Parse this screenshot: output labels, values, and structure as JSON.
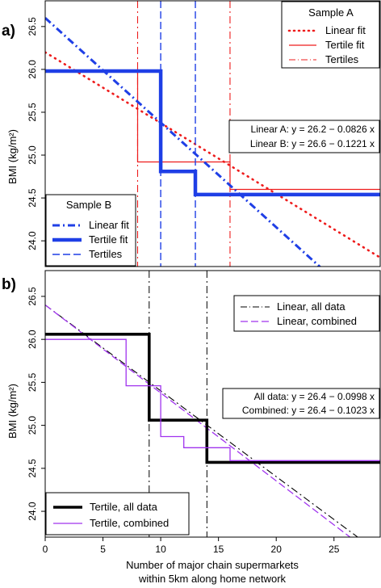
{
  "chart_data": [
    {
      "type": "line",
      "panel_label": "a)",
      "ylabel": "BMI (kg/m²)",
      "xlim": [
        0,
        29
      ],
      "ylim": [
        23.7,
        26.8
      ],
      "yticks": [
        24.0,
        24.5,
        25.0,
        25.5,
        26.0,
        26.5
      ],
      "ytick_labels": [
        "24.0",
        "24.5",
        "25.0",
        "25.5",
        "26.0",
        "26.5"
      ],
      "grid": false,
      "legends": [
        {
          "title": "Sample A",
          "placement": "top-right",
          "items": [
            {
              "label": "Linear fit",
              "series": "a_lin"
            },
            {
              "label": "Tertile fit",
              "series": "a_ter"
            },
            {
              "label": "Tertiles",
              "series": "a_cut"
            }
          ]
        },
        {
          "title": "Sample B",
          "placement": "bottom-left",
          "items": [
            {
              "label": "Linear fit",
              "series": "b_lin"
            },
            {
              "label": "Tertile fit",
              "series": "b_ter"
            },
            {
              "label": "Tertiles",
              "series": "b_cut"
            }
          ]
        }
      ],
      "annotations": [
        "Linear A: y = 26.2 − 0.0826 x",
        "Linear B: y = 26.6 − 0.1221 x"
      ],
      "series": [
        {
          "id": "a_lin",
          "kind": "line",
          "color": "#ee1c1c",
          "style": "dotted",
          "width": 2.6,
          "x": [
            0,
            29
          ],
          "y": [
            26.2,
            23.8046
          ]
        },
        {
          "id": "a_ter",
          "kind": "step",
          "color": "#ee1c1c",
          "style": "solid",
          "width": 1.2,
          "x": [
            0,
            8,
            8,
            16,
            16,
            29
          ],
          "y": [
            25.98,
            25.98,
            24.92,
            24.92,
            24.6,
            24.6
          ]
        },
        {
          "id": "a_cut",
          "kind": "vline",
          "color": "#ee1c1c",
          "style": "dashdot",
          "width": 1.1,
          "x": [
            8,
            16
          ]
        },
        {
          "id": "b_lin",
          "kind": "line",
          "color": "#1f3fe6",
          "style": "dashdot",
          "width": 3,
          "x": [
            0,
            29
          ],
          "y": [
            26.6,
            23.0591
          ]
        },
        {
          "id": "b_ter",
          "kind": "step",
          "color": "#1f3fe6",
          "style": "solid",
          "width": 4.5,
          "x": [
            0,
            10,
            10,
            13,
            13,
            29
          ],
          "y": [
            25.98,
            25.98,
            24.81,
            24.81,
            24.54,
            24.54
          ]
        },
        {
          "id": "b_cut",
          "kind": "vline",
          "color": "#1f3fe6",
          "style": "dashed",
          "width": 1.4,
          "x": [
            10,
            13
          ]
        }
      ]
    },
    {
      "type": "line",
      "panel_label": "b)",
      "ylabel": "BMI (kg/m²)",
      "xlabel": "Number of major chain supermarkets\nwithin 5km along home network",
      "xlim": [
        0,
        29
      ],
      "ylim": [
        23.7,
        26.8
      ],
      "xticks": [
        0,
        5,
        10,
        15,
        20,
        25
      ],
      "xtick_labels": [
        "0",
        "5",
        "10",
        "15",
        "20",
        "25"
      ],
      "yticks": [
        24.0,
        24.5,
        25.0,
        25.5,
        26.0,
        26.5
      ],
      "ytick_labels": [
        "24.0",
        "24.5",
        "25.0",
        "25.5",
        "26.0",
        "26.5"
      ],
      "grid": false,
      "legends": [
        {
          "placement": "top-right",
          "items": [
            {
              "label": "Linear, all data",
              "series": "c_lin"
            },
            {
              "label": "Linear, combined",
              "series": "d_lin"
            }
          ]
        },
        {
          "placement": "bottom-left",
          "items": [
            {
              "label": "Tertile, all data",
              "series": "c_ter"
            },
            {
              "label": "Tertile, combined",
              "series": "d_ter"
            }
          ]
        }
      ],
      "annotations": [
        "All data: y = 26.4 − 0.0998 x",
        "Combined: y = 26.4 − 0.1023 x"
      ],
      "series": [
        {
          "id": "c_lin",
          "kind": "line",
          "color": "#000000",
          "style": "dashdot",
          "width": 1.1,
          "x": [
            0,
            29
          ],
          "y": [
            26.4,
            23.5058
          ]
        },
        {
          "id": "d_lin",
          "kind": "line",
          "color": "#a033ee",
          "style": "dashed",
          "width": 1.3,
          "x": [
            0,
            29
          ],
          "y": [
            26.4,
            23.4333
          ]
        },
        {
          "id": "c_ter",
          "kind": "step",
          "color": "#000000",
          "style": "solid",
          "width": 3.6,
          "x": [
            0,
            9,
            9,
            14,
            14,
            29
          ],
          "y": [
            26.06,
            26.06,
            25.06,
            25.06,
            24.57,
            24.57
          ]
        },
        {
          "id": "d_ter",
          "kind": "step",
          "color": "#a033ee",
          "style": "solid",
          "width": 1.3,
          "x": [
            0,
            7,
            7,
            9,
            9,
            10,
            10,
            12,
            12,
            14,
            14,
            16,
            16,
            29
          ],
          "y": [
            26.0,
            26.0,
            25.46,
            25.46,
            25.46,
            25.46,
            24.87,
            24.87,
            24.74,
            24.74,
            24.74,
            24.74,
            24.59,
            24.59
          ]
        },
        {
          "id": "c_cut",
          "kind": "vline",
          "color": "#000000",
          "style": "dashdot",
          "width": 1,
          "x": [
            9,
            14
          ]
        }
      ]
    }
  ]
}
